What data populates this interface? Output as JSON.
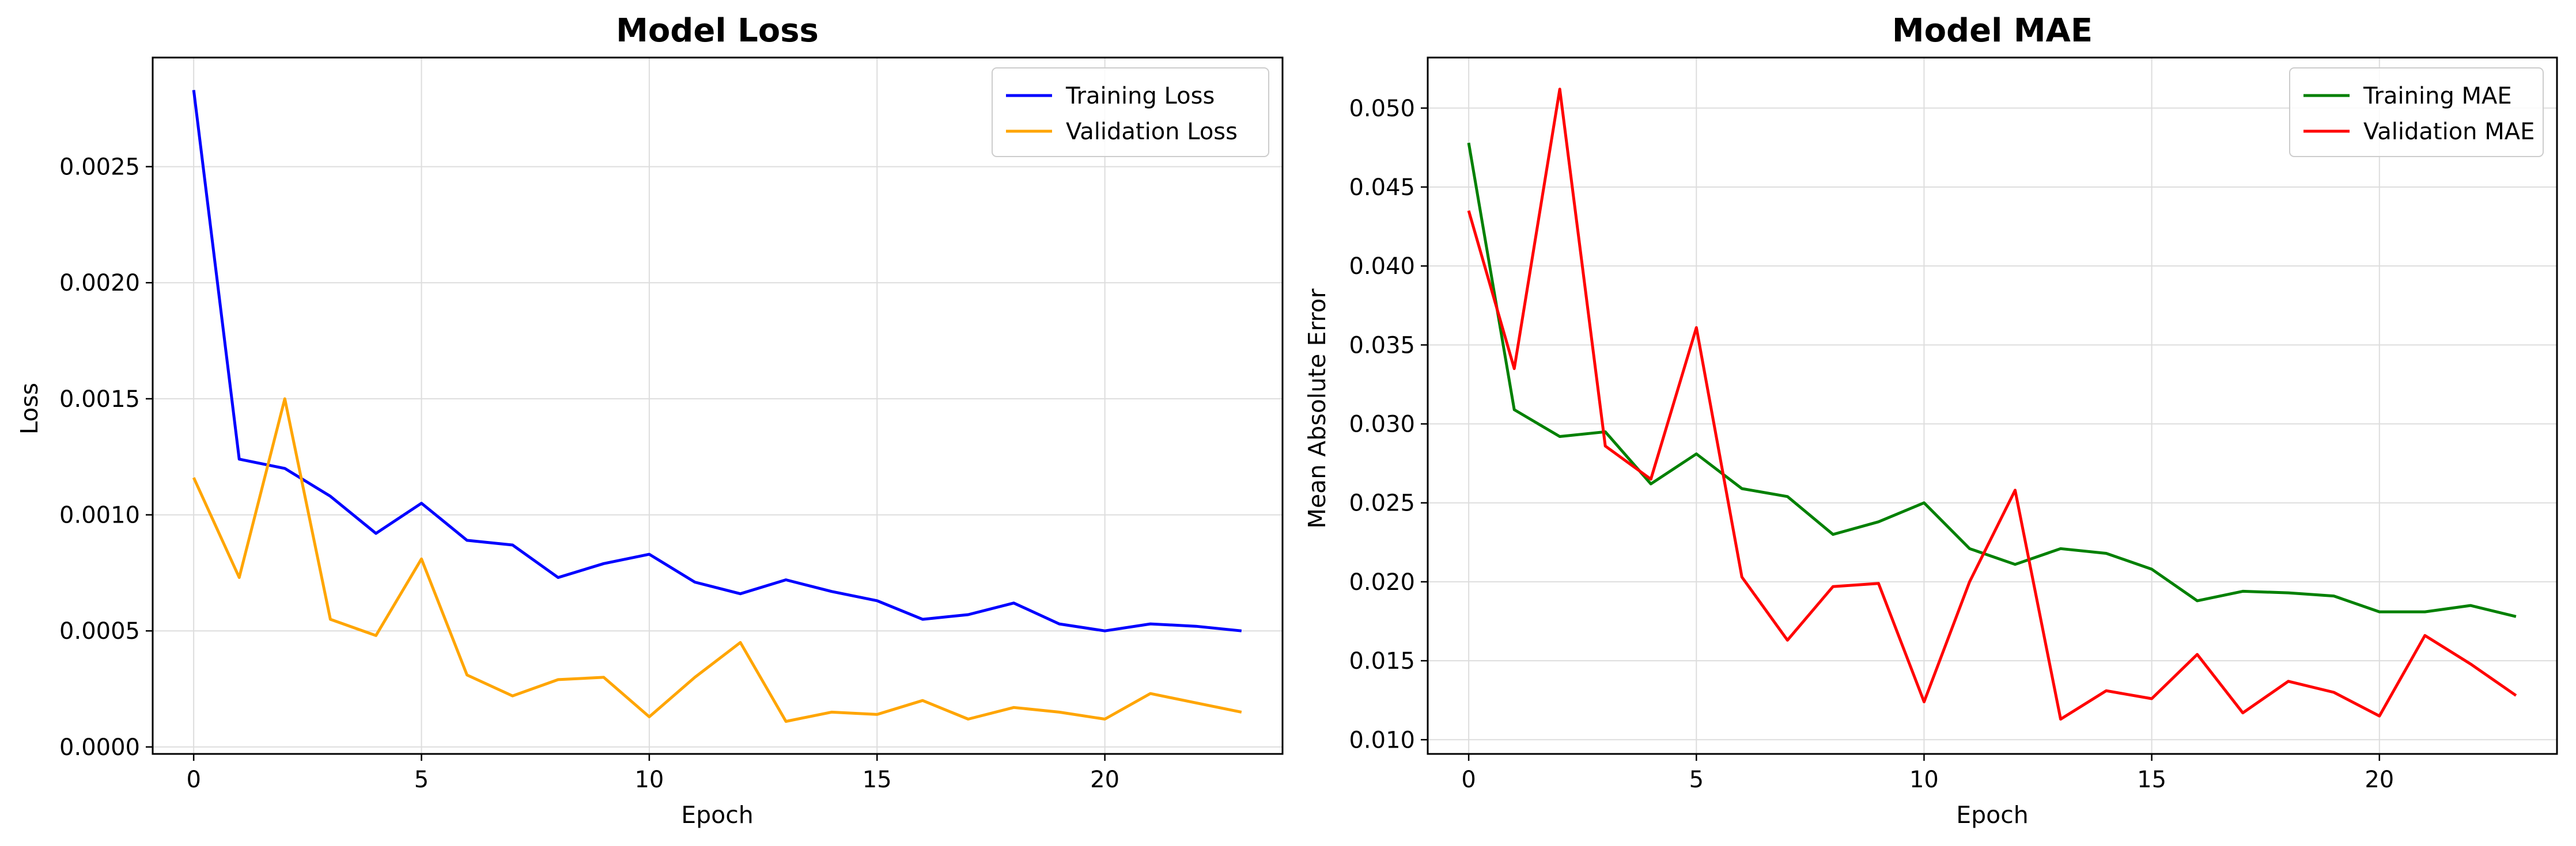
{
  "chart_data": [
    {
      "type": "line",
      "title": "Model Loss",
      "xlabel": "Epoch",
      "ylabel": "Loss",
      "x": [
        0,
        1,
        2,
        3,
        4,
        5,
        6,
        7,
        8,
        9,
        10,
        11,
        12,
        13,
        14,
        15,
        16,
        17,
        18,
        19,
        20,
        21,
        22,
        23
      ],
      "xlim": [
        -0.9,
        23.9
      ],
      "ylim": [
        -3e-05,
        0.00297
      ],
      "xticks": [
        0,
        5,
        10,
        15,
        20
      ],
      "xtick_labels": [
        "0",
        "5",
        "10",
        "15",
        "20"
      ],
      "yticks": [
        0.0,
        0.0005,
        0.001,
        0.0015,
        0.002,
        0.0025
      ],
      "ytick_labels": [
        "0.0000",
        "0.0005",
        "0.0010",
        "0.0015",
        "0.0020",
        "0.0025"
      ],
      "grid": true,
      "legend": "upper right",
      "series": [
        {
          "name": "Training Loss",
          "color": "#0000ff",
          "values": [
            0.00283,
            0.00124,
            0.0012,
            0.00108,
            0.00092,
            0.00105,
            0.00089,
            0.00087,
            0.00073,
            0.00079,
            0.00083,
            0.00071,
            0.00066,
            0.00072,
            0.00067,
            0.00063,
            0.00055,
            0.00057,
            0.00062,
            0.00053,
            0.0005,
            0.00053,
            0.00052,
            0.0005
          ]
        },
        {
          "name": "Validation Loss",
          "color": "#ffa500",
          "values": [
            0.00116,
            0.00073,
            0.0015,
            0.00055,
            0.00048,
            0.00081,
            0.00031,
            0.00022,
            0.00029,
            0.0003,
            0.00013,
            0.0003,
            0.00045,
            0.00011,
            0.00015,
            0.00014,
            0.0002,
            0.00012,
            0.00017,
            0.00015,
            0.00012,
            0.00023,
            0.00019,
            0.00015
          ]
        }
      ]
    },
    {
      "type": "line",
      "title": "Model MAE",
      "xlabel": "Epoch",
      "ylabel": "Mean Absolute Error",
      "x": [
        0,
        1,
        2,
        3,
        4,
        5,
        6,
        7,
        8,
        9,
        10,
        11,
        12,
        13,
        14,
        15,
        16,
        17,
        18,
        19,
        20,
        21,
        22,
        23
      ],
      "xlim": [
        -0.9,
        23.9
      ],
      "ylim": [
        0.0091,
        0.0532
      ],
      "xticks": [
        0,
        5,
        10,
        15,
        20
      ],
      "xtick_labels": [
        "0",
        "5",
        "10",
        "15",
        "20"
      ],
      "yticks": [
        0.01,
        0.015,
        0.02,
        0.025,
        0.03,
        0.035,
        0.04,
        0.045,
        0.05
      ],
      "ytick_labels": [
        "0.010",
        "0.015",
        "0.020",
        "0.025",
        "0.030",
        "0.035",
        "0.040",
        "0.045",
        "0.050"
      ],
      "grid": true,
      "legend": "upper right",
      "series": [
        {
          "name": "Training MAE",
          "color": "#008000",
          "values": [
            0.0478,
            0.0309,
            0.0292,
            0.0295,
            0.0262,
            0.0281,
            0.0259,
            0.0254,
            0.023,
            0.0238,
            0.025,
            0.0221,
            0.0211,
            0.0221,
            0.0218,
            0.0208,
            0.0188,
            0.0194,
            0.0193,
            0.0191,
            0.0181,
            0.0181,
            0.0185,
            0.0178
          ]
        },
        {
          "name": "Validation MAE",
          "color": "#ff0000",
          "values": [
            0.0435,
            0.0335,
            0.0512,
            0.0286,
            0.0265,
            0.0361,
            0.0203,
            0.0163,
            0.0197,
            0.0199,
            0.0124,
            0.02,
            0.0258,
            0.0113,
            0.0131,
            0.0126,
            0.0154,
            0.0117,
            0.0137,
            0.013,
            0.0115,
            0.0166,
            0.0148,
            0.0128
          ]
        }
      ]
    }
  ]
}
